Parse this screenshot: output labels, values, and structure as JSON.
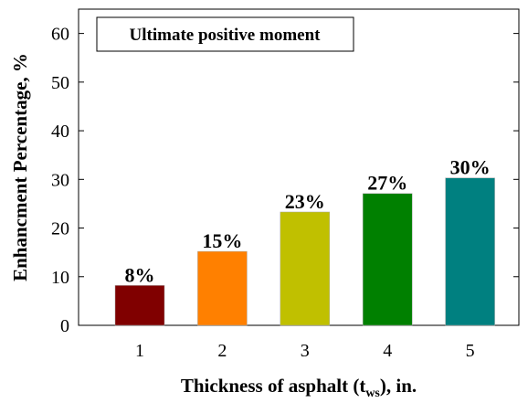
{
  "chart_data": {
    "type": "bar",
    "annotation": "Ultimate positive moment",
    "ylabel": "Enhancment Percentage, %",
    "xlabel_parts": [
      "Thickness of asphalt (t",
      "ws",
      "), in."
    ],
    "categories": [
      "1",
      "2",
      "3",
      "4",
      "5"
    ],
    "values": [
      8.2,
      15.2,
      23.3,
      27.1,
      30.3
    ],
    "value_labels": [
      "8%",
      "15%",
      "23%",
      "27%",
      "30%"
    ],
    "colors": [
      "#800000",
      "#ff8000",
      "#c0c000",
      "#008000",
      "#008080"
    ],
    "ylim": [
      0,
      65
    ],
    "yticks": [
      0,
      10,
      20,
      30,
      40,
      50,
      60
    ],
    "grid": false
  }
}
